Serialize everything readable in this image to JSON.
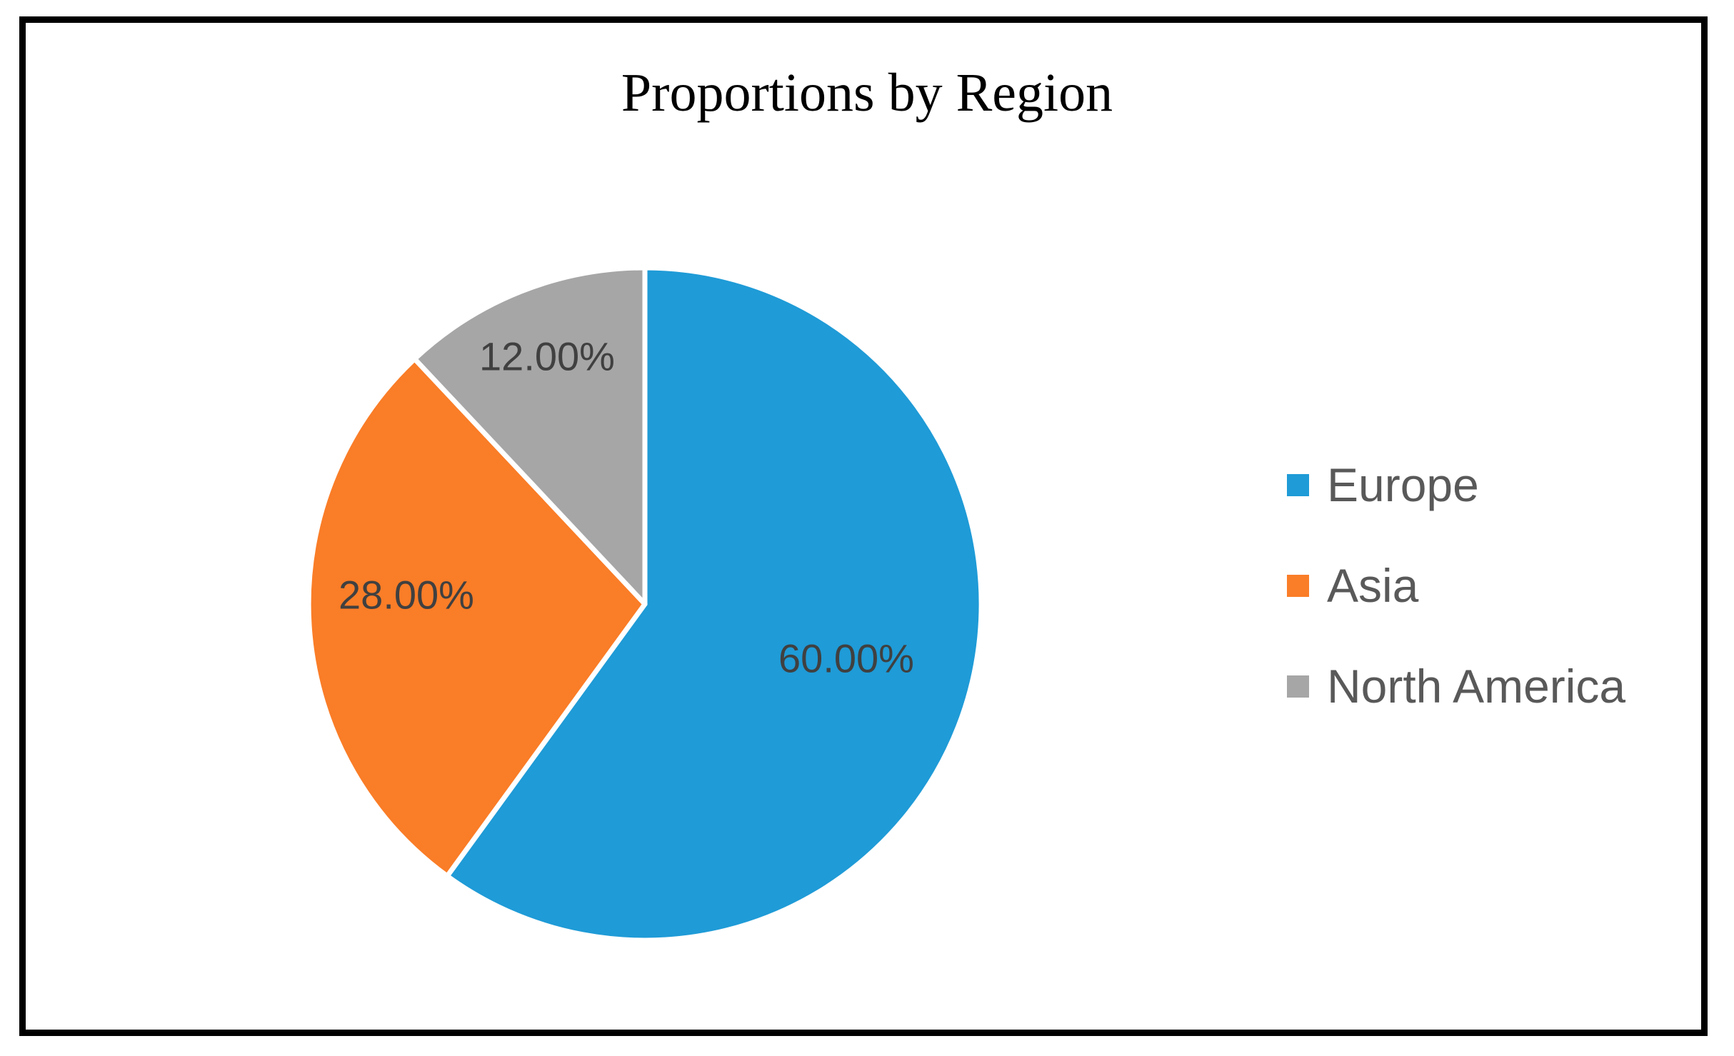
{
  "window": {
    "background_color": "#ffffff",
    "frame_border_color": "#000000"
  },
  "chart_data": {
    "type": "pie",
    "title": "Proportions by Region",
    "categories": [
      "Europe",
      "Asia",
      "North America"
    ],
    "values": [
      60,
      28,
      12
    ],
    "value_labels": [
      "60.00%",
      "28.00%",
      "12.00%"
    ],
    "colors": [
      "#1F9BD7",
      "#FA7D27",
      "#A6A6A6"
    ],
    "start_angle_deg": 0,
    "direction": "clockwise",
    "legend_position": "right",
    "slice_label_color": "#404040",
    "slice_border_color": "#ffffff",
    "title_color": "#000000",
    "legend_text_color": "#595959"
  },
  "legend": {
    "items": [
      {
        "label": "Europe",
        "color": "#1F9BD7"
      },
      {
        "label": "Asia",
        "color": "#FA7D27"
      },
      {
        "label": "North America",
        "color": "#A6A6A6"
      }
    ]
  }
}
